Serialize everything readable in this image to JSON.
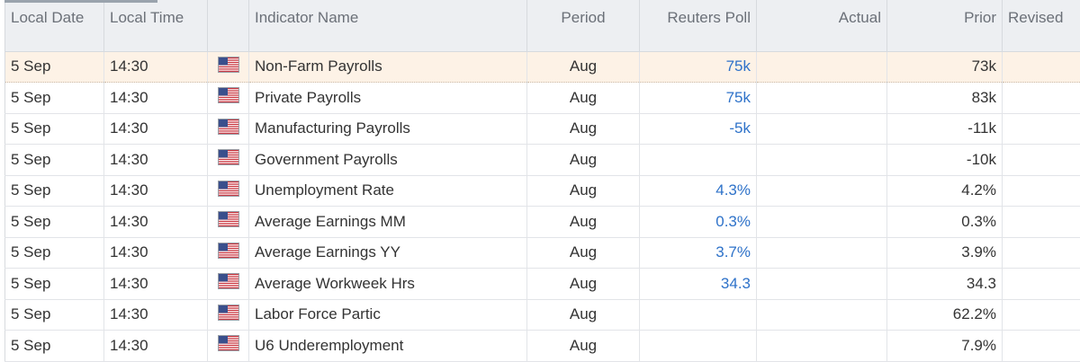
{
  "table": {
    "headers": {
      "date": "Local Date",
      "time": "Local Time",
      "name": "Indicator Name",
      "period": "Period",
      "poll": "Reuters Poll",
      "actual": "Actual",
      "prior": "Prior",
      "revised": "Revised"
    },
    "rows": [
      {
        "date": "5 Sep",
        "time": "14:30",
        "name": "Non-Farm Payrolls",
        "period": "Aug",
        "poll": "75k",
        "prior": "73k"
      },
      {
        "date": "5 Sep",
        "time": "14:30",
        "name": "Private Payrolls",
        "period": "Aug",
        "poll": "75k",
        "prior": "83k"
      },
      {
        "date": "5 Sep",
        "time": "14:30",
        "name": "Manufacturing Payrolls",
        "period": "Aug",
        "poll": "-5k",
        "prior": "-11k"
      },
      {
        "date": "5 Sep",
        "time": "14:30",
        "name": "Government Payrolls",
        "period": "Aug",
        "prior": "-10k"
      },
      {
        "date": "5 Sep",
        "time": "14:30",
        "name": "Unemployment Rate",
        "period": "Aug",
        "poll": "4.3%",
        "prior": "4.2%"
      },
      {
        "date": "5 Sep",
        "time": "14:30",
        "name": "Average Earnings MM",
        "period": "Aug",
        "poll": "0.3%",
        "prior": "0.3%"
      },
      {
        "date": "5 Sep",
        "time": "14:30",
        "name": "Average Earnings YY",
        "period": "Aug",
        "poll": "3.7%",
        "prior": "3.9%"
      },
      {
        "date": "5 Sep",
        "time": "14:30",
        "name": "Average Workweek Hrs",
        "period": "Aug",
        "poll": "34.3",
        "prior": "34.3"
      },
      {
        "date": "5 Sep",
        "time": "14:30",
        "name": "Labor Force Partic",
        "period": "Aug",
        "prior": "62.2%"
      },
      {
        "date": "5 Sep",
        "time": "14:30",
        "name": "U6 Underemployment",
        "period": "Aug",
        "prior": "7.9%"
      }
    ]
  }
}
